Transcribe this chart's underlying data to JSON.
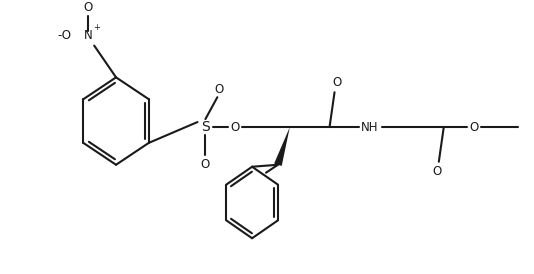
{
  "bg_color": "#ffffff",
  "line_color": "#1a1a1a",
  "lw": 1.5,
  "figsize": [
    5.34,
    2.74
  ],
  "dpi": 100,
  "xlim": [
    0,
    534
  ],
  "ylim": [
    0,
    274
  ]
}
